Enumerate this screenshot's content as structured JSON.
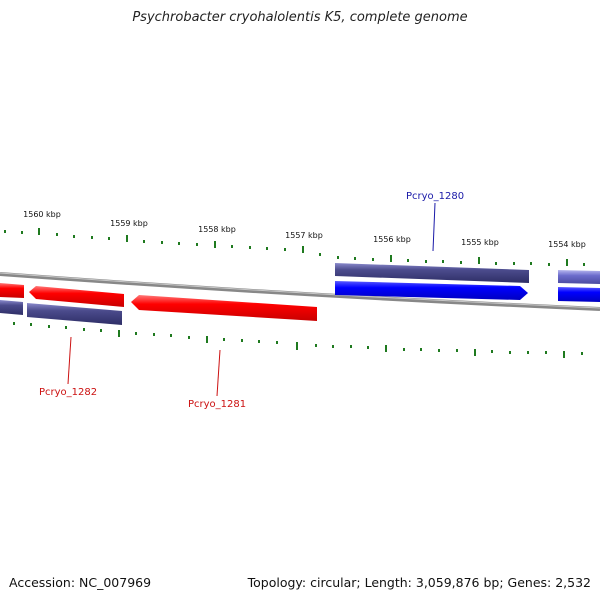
{
  "title": "Psychrobacter cryohalolentis K5, complete genome",
  "footer": {
    "accession": "Accession: NC_007969",
    "summary": "Topology: circular; Length: 3,059,876 bp; Genes: 2,532"
  },
  "scale_labels": [
    "1560 kbp",
    "1559 kbp",
    "1558 kbp",
    "1557 kbp",
    "1556 kbp",
    "1555 kbp",
    "1554 kbp"
  ],
  "gene_labels": {
    "pcryo_1280": "Pcryo_1280",
    "pcryo_1282": "Pcryo_1282",
    "pcryo_1281": "Pcryo_1281"
  },
  "colors": {
    "reverse_gene": "#ff0000",
    "forward_gene": "#0000ff",
    "cds_band": "#4b4b8c",
    "backbone": "#808080",
    "ticks": "#1f7a1f",
    "forward_label": "#1a1aa8",
    "reverse_label": "#cc1111"
  }
}
